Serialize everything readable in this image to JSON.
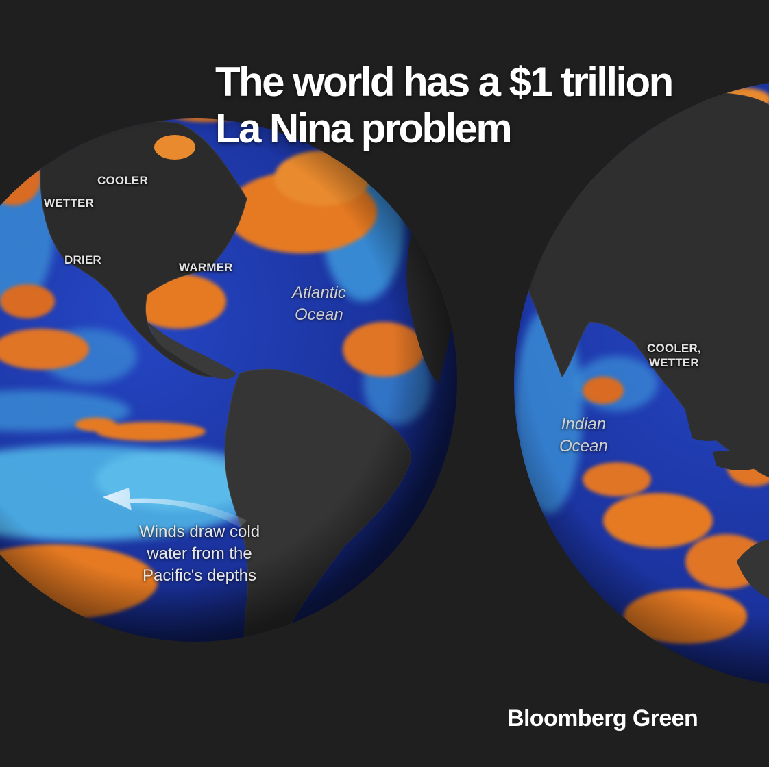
{
  "headline": {
    "line1": "The world has a $1 trillion",
    "line2": "La Nina problem"
  },
  "brand": "Bloomberg Green",
  "regions": {
    "cooler": "COOLER",
    "wetter": "WETTER",
    "drier": "DRIER",
    "warmer": "WARMER",
    "cooler_wetter": "COOLER,\nWETTER"
  },
  "oceans": {
    "atlantic": "Atlantic\nOcean",
    "indian": "Indian\nOcean"
  },
  "annotation": "Winds draw cold\nwater from the\nPacific's depths",
  "colors": {
    "background": "#1f1f1f",
    "land": "#2b2b2b",
    "ocean_cool": "#1c3aa8",
    "ocean_cold": "#4fa6de",
    "ocean_warm": "#e67a22"
  }
}
